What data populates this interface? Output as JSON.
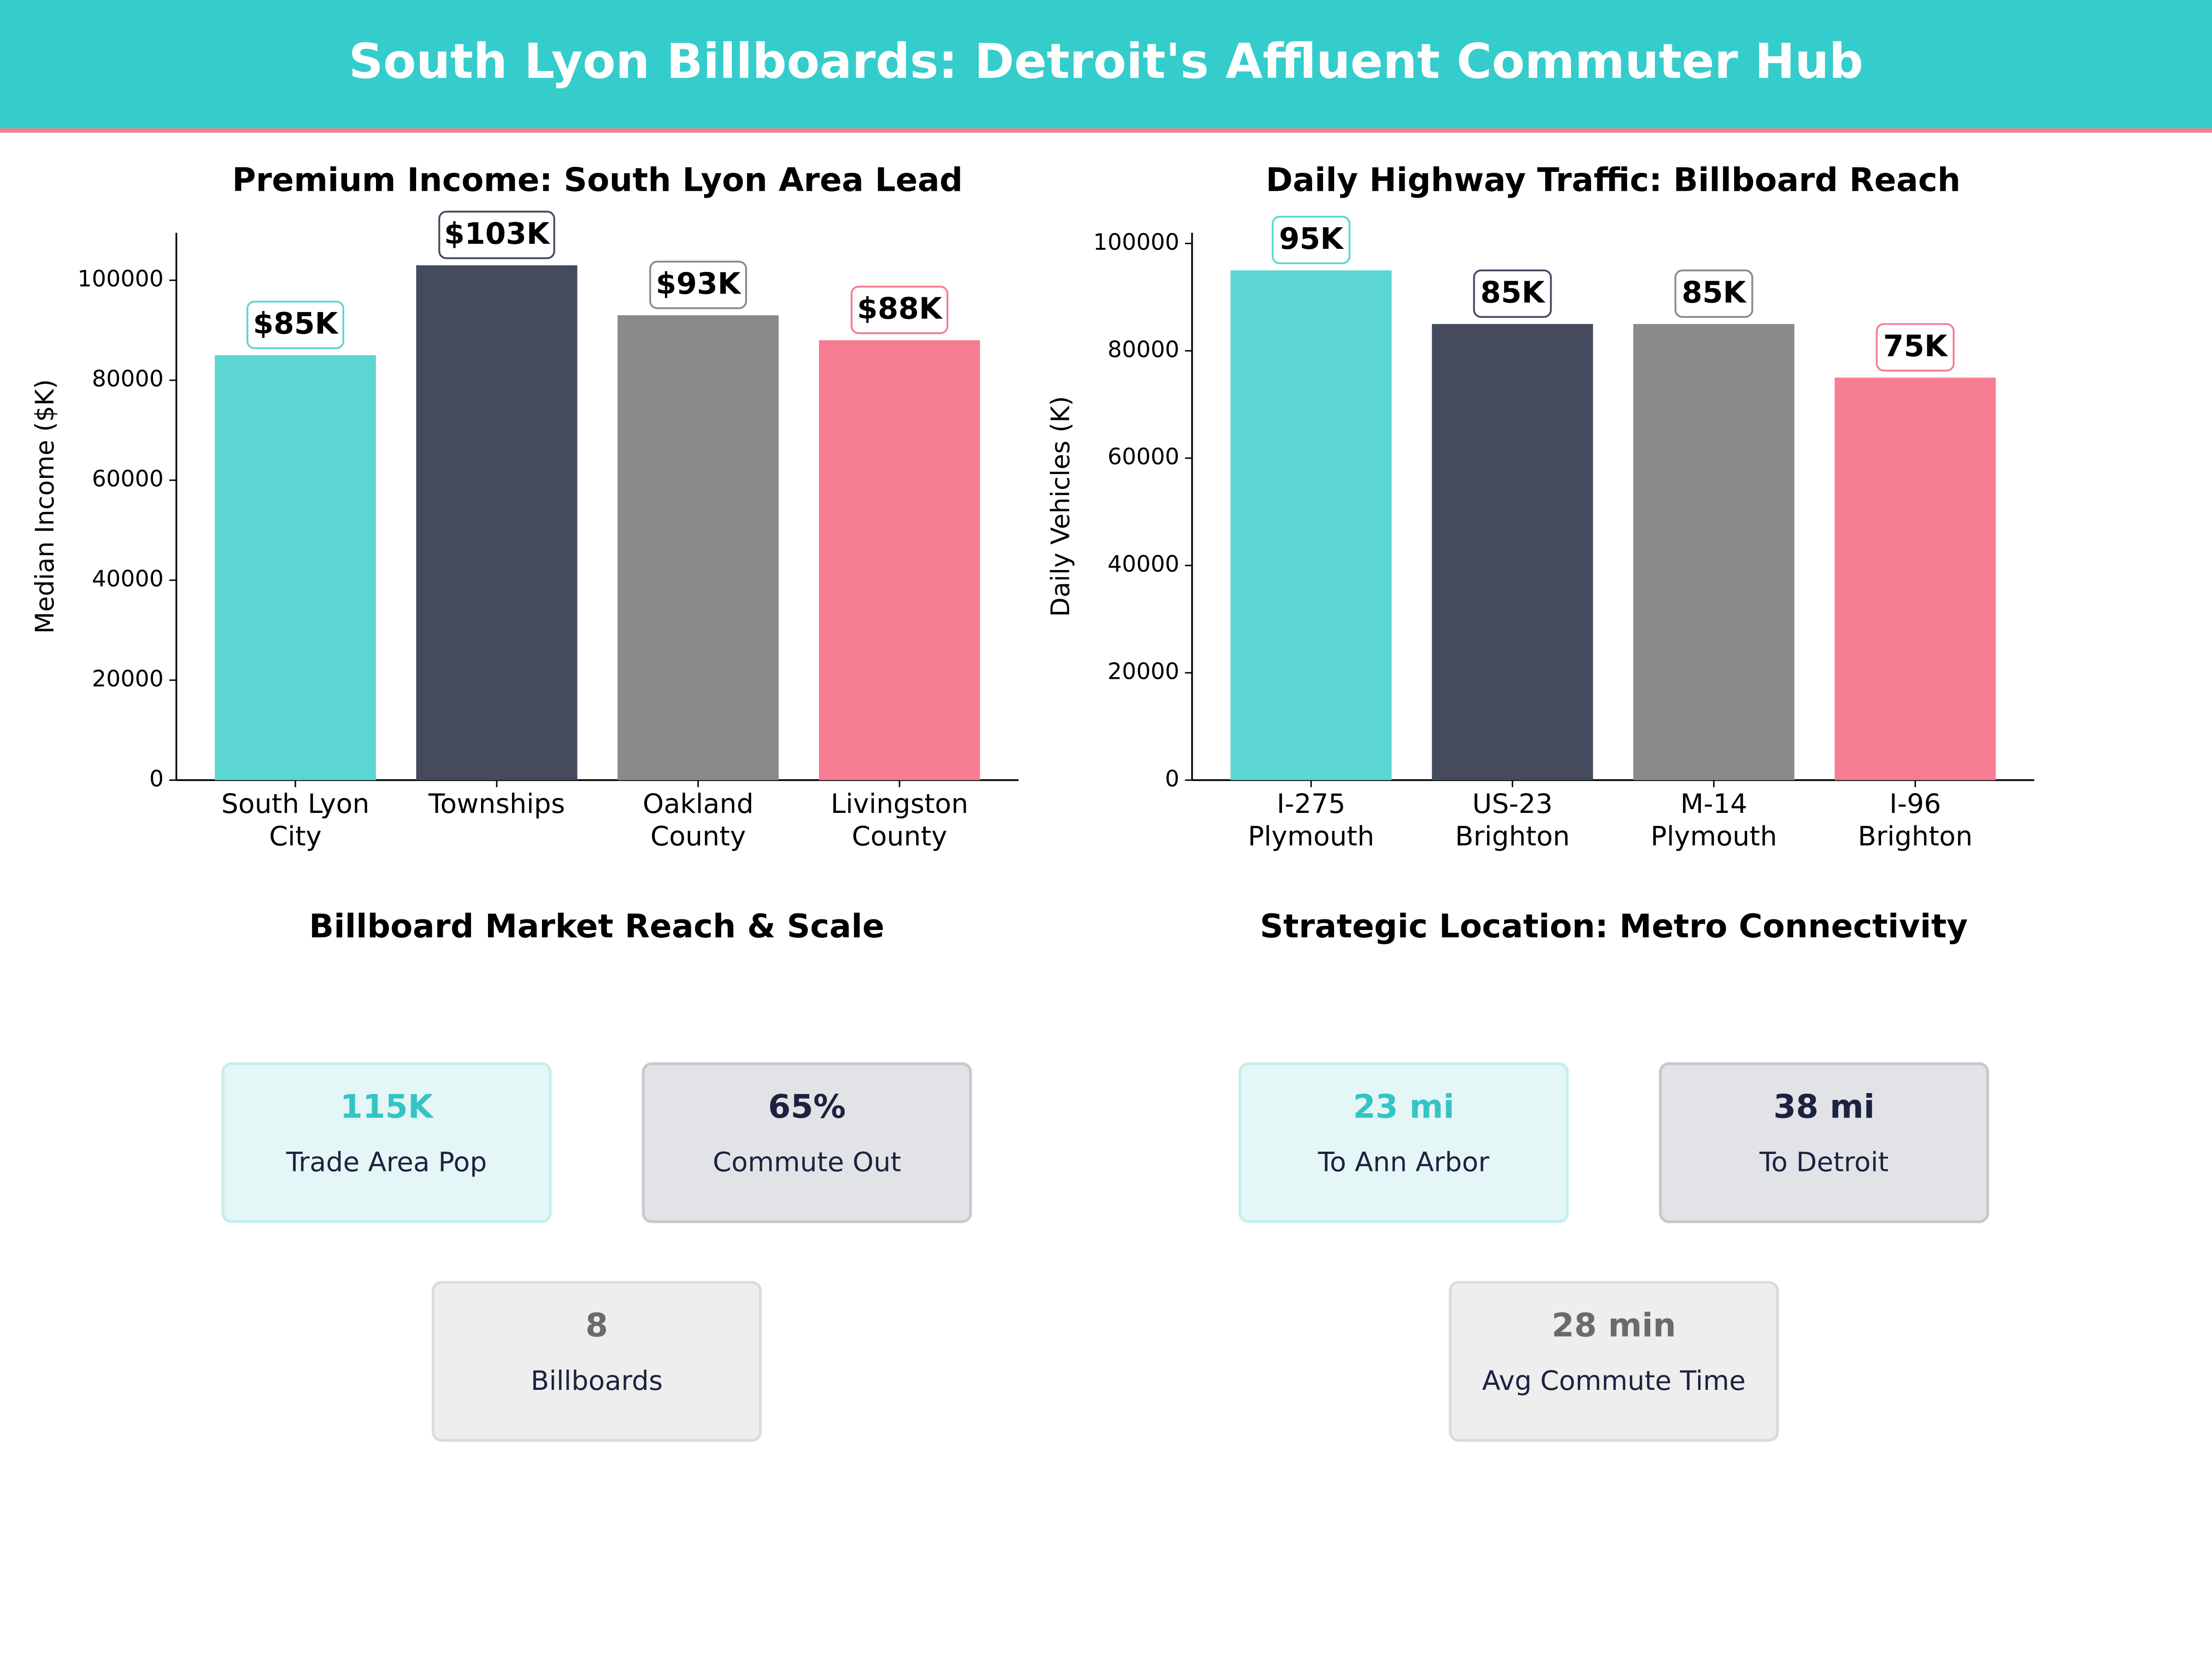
{
  "title": "South Lyon Billboards: Detroit's Affluent Commuter Hub",
  "chart_data": [
    {
      "type": "bar",
      "title": "Premium Income: South Lyon Area Lead",
      "y_label": "Median Income ($K)",
      "categories": [
        "South Lyon\nCity",
        "Townships",
        "Oakland\nCounty",
        "Livingston\nCounty"
      ],
      "values": [
        85000,
        103000,
        93000,
        88000
      ],
      "value_labels": [
        "$85K",
        "$103K",
        "$93K",
        "$88K"
      ],
      "colors": [
        "#5cd6d3",
        "#454a5f",
        "#8a8a8a",
        "#f57d91"
      ],
      "ylim": [
        0,
        109500
      ],
      "yticks": [
        0,
        20000,
        40000,
        60000,
        80000,
        100000
      ]
    },
    {
      "type": "bar",
      "title": "Daily Highway Traffic: Billboard Reach",
      "y_label": "Daily Vehicles (K)",
      "categories": [
        "I-275\nPlymouth",
        "US-23\nBrighton",
        "M-14\nPlymouth",
        "I-96\nBrighton"
      ],
      "values": [
        95000,
        85000,
        85000,
        75000
      ],
      "value_labels": [
        "95K",
        "85K",
        "85K",
        "75K"
      ],
      "colors": [
        "#5cd6d3",
        "#454a5f",
        "#8a8a8a",
        "#f57d91"
      ],
      "ylim": [
        0,
        102000
      ],
      "yticks": [
        0,
        20000,
        40000,
        60000,
        80000,
        100000
      ]
    }
  ],
  "panels": [
    {
      "title": "Billboard Market Reach & Scale",
      "cards": [
        {
          "value": "115K",
          "label": "Trade Area Pop"
        },
        {
          "value": "65%",
          "label": "Commute Out"
        },
        {
          "value": "8",
          "label": "Billboards"
        }
      ]
    },
    {
      "title": "Strategic Location: Metro Connectivity",
      "cards": [
        {
          "value": "23 mi",
          "label": "To Ann Arbor"
        },
        {
          "value": "38 mi",
          "label": "To Detroit"
        },
        {
          "value": "28 min",
          "label": "Avg Commute Time"
        }
      ]
    }
  ]
}
